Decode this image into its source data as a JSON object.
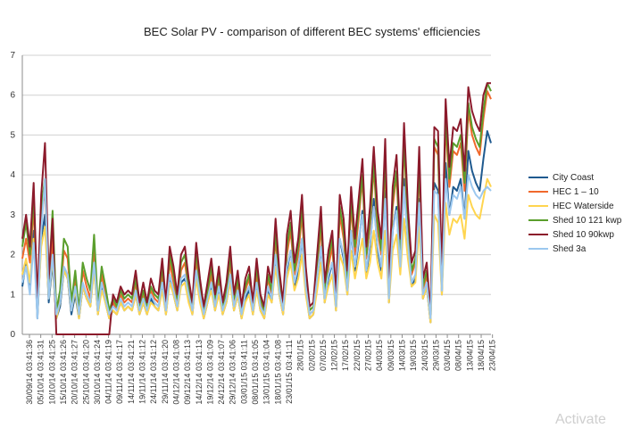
{
  "chart_data": {
    "type": "line",
    "title": "BEC Solar PV - comparison of different BEC systems' efficiencies",
    "xlabel": "",
    "ylabel": "",
    "ylim": [
      0,
      7
    ],
    "yticks": [
      "0",
      "1",
      "2",
      "3",
      "4",
      "5",
      "6",
      "7"
    ],
    "x_tick_labels": [
      "30/09/14 03:41:36",
      "05/10/14 03:41:31",
      "10/10/14 03:41:25",
      "15/10/14 03:41:26",
      "20/10/14 03:41:27",
      "25/10/14 03:41:20",
      "30/10/14 03:41:24",
      "04/11/14 03:41:19",
      "09/11/14 03:41:17",
      "14/11/14 03:41:21",
      "19/11/14 03:41:12",
      "24/11/14 03:41:12",
      "29/11/14 03:41:20",
      "04/12/14 03:41:08",
      "09/12/14 03:41:13",
      "14/12/14 03:41:13",
      "19/12/14 03:41:09",
      "24/12/14 03:41:07",
      "29/12/14 03:41:06",
      "03/01/15 03:41:11",
      "08/01/15 03:41:05",
      "13/01/15 03:41:04",
      "18/01/15 03:41:08",
      "23/01/15 03:41:11",
      "28/01/15",
      "02/02/15",
      "07/02/15",
      "12/02/15",
      "17/02/15",
      "22/02/15",
      "27/02/15",
      "04/03/15",
      "09/03/15",
      "14/03/15",
      "19/03/15",
      "24/03/15",
      "29/03/15",
      "03/04/15",
      "08/04/15",
      "13/04/15",
      "18/04/15",
      "23/04/15"
    ],
    "legend_position": "right",
    "grid": "horizontal",
    "series": [
      {
        "name": "City Coast",
        "color": "#1f5a8f",
        "values": [
          1.2,
          1.8,
          1.1,
          2.6,
          0.4,
          2.4,
          3.0,
          0.8,
          1.8,
          0.4,
          0.7,
          1.6,
          1.4,
          0.5,
          1.0,
          0.4,
          1.2,
          0.9,
          0.7,
          1.7,
          0.5,
          1.2,
          0.8,
          0.4,
          0.6,
          0.5,
          0.8,
          0.6,
          0.7,
          0.6,
          1.0,
          0.5,
          0.8,
          0.5,
          0.9,
          0.7,
          0.6,
          1.2,
          0.5,
          1.4,
          1.0,
          0.6,
          1.3,
          1.4,
          0.9,
          0.5,
          1.5,
          0.9,
          0.4,
          0.8,
          1.2,
          0.6,
          1.1,
          0.5,
          0.8,
          1.4,
          0.6,
          1.0,
          0.4,
          0.9,
          1.1,
          0.5,
          1.2,
          0.6,
          0.4,
          1.1,
          0.8,
          1.9,
          1.0,
          0.5,
          1.6,
          2.1,
          1.2,
          1.6,
          2.4,
          1.1,
          0.4,
          0.5,
          1.3,
          2.2,
          0.8,
          1.4,
          1.8,
          0.6,
          2.4,
          1.9,
          1.0,
          2.6,
          1.6,
          2.3,
          3.1,
          1.5,
          2.2,
          3.4,
          2.1,
          1.6,
          3.6,
          0.8,
          2.6,
          3.2,
          1.6,
          3.9,
          2.2,
          1.2,
          1.4,
          3.4,
          0.9,
          1.2,
          0.3,
          3.8,
          3.6,
          1.0,
          4.3,
          3.0,
          3.7,
          3.6,
          3.9,
          2.9,
          4.6,
          4.1,
          3.8,
          3.6,
          4.4,
          5.1,
          4.8
        ]
      },
      {
        "name": "HEC 1 – 10",
        "color": "#f0682c",
        "values": [
          1.9,
          2.4,
          1.8,
          3.2,
          0.6,
          3.0,
          3.6,
          1.1,
          2.4,
          0.5,
          0.9,
          2.1,
          1.9,
          0.7,
          1.4,
          0.5,
          1.6,
          1.2,
          0.9,
          2.2,
          0.6,
          1.5,
          1.0,
          0.5,
          0.8,
          0.6,
          1.0,
          0.8,
          0.9,
          0.8,
          1.3,
          0.6,
          1.0,
          0.6,
          1.1,
          0.9,
          0.8,
          1.5,
          0.6,
          1.8,
          1.3,
          0.8,
          1.6,
          1.8,
          1.1,
          0.6,
          1.9,
          1.1,
          0.5,
          1.0,
          1.5,
          0.8,
          1.4,
          0.6,
          1.0,
          1.8,
          0.8,
          1.3,
          0.5,
          1.1,
          1.4,
          0.6,
          1.5,
          0.8,
          0.5,
          1.4,
          1.0,
          2.4,
          1.3,
          0.6,
          2.0,
          2.6,
          1.5,
          2.0,
          3.0,
          1.4,
          0.5,
          0.6,
          1.6,
          2.7,
          1.0,
          1.7,
          2.2,
          0.8,
          3.0,
          2.4,
          1.3,
          3.2,
          2.0,
          2.9,
          3.9,
          1.9,
          2.7,
          4.2,
          2.6,
          2.0,
          4.3,
          1.0,
          3.2,
          4.0,
          2.0,
          4.8,
          2.7,
          1.5,
          1.8,
          4.2,
          1.1,
          1.5,
          0.4,
          4.7,
          4.5,
          1.3,
          5.3,
          3.7,
          4.6,
          4.5,
          4.8,
          3.6,
          5.6,
          5.0,
          4.7,
          4.5,
          5.4,
          6.1,
          5.9
        ]
      },
      {
        "name": "HEC Waterside",
        "color": "#ffd54f",
        "values": [
          1.5,
          1.9,
          1.3,
          2.4,
          0.5,
          2.2,
          2.7,
          0.9,
          1.9,
          0.4,
          0.8,
          1.6,
          1.4,
          0.6,
          1.1,
          0.4,
          1.2,
          0.9,
          0.7,
          1.6,
          0.5,
          1.1,
          0.8,
          0.4,
          0.6,
          0.5,
          0.8,
          0.6,
          0.7,
          0.6,
          1.0,
          0.5,
          0.8,
          0.5,
          0.8,
          0.7,
          0.6,
          1.1,
          0.5,
          1.3,
          1.0,
          0.6,
          1.2,
          1.3,
          0.8,
          0.5,
          1.4,
          0.8,
          0.4,
          0.8,
          1.1,
          0.6,
          1.0,
          0.5,
          0.8,
          1.3,
          0.6,
          1.0,
          0.4,
          0.8,
          1.0,
          0.5,
          1.1,
          0.6,
          0.4,
          1.0,
          0.8,
          1.7,
          1.0,
          0.5,
          1.4,
          1.8,
          1.1,
          1.4,
          2.0,
          1.0,
          0.4,
          0.5,
          1.1,
          1.8,
          0.8,
          1.2,
          1.5,
          0.6,
          2.0,
          1.7,
          1.0,
          2.1,
          1.4,
          1.9,
          2.4,
          1.4,
          1.8,
          2.6,
          1.8,
          1.4,
          2.6,
          0.8,
          2.1,
          2.5,
          1.5,
          2.9,
          1.9,
          1.2,
          1.3,
          2.7,
          0.9,
          1.2,
          0.3,
          3.0,
          2.8,
          1.0,
          3.3,
          2.5,
          2.9,
          2.8,
          3.0,
          2.4,
          3.5,
          3.2,
          3.0,
          2.9,
          3.4,
          3.9,
          3.7
        ]
      },
      {
        "name": "Shed 10 121 kwp",
        "color": "#5a9e2c",
        "values": [
          2.2,
          2.8,
          2.0,
          3.5,
          0.7,
          3.2,
          3.9,
          1.3,
          3.1,
          0.6,
          1.1,
          2.4,
          2.2,
          0.8,
          1.6,
          0.6,
          1.8,
          1.4,
          1.1,
          2.5,
          0.7,
          1.7,
          1.2,
          0.6,
          0.9,
          0.7,
          1.1,
          0.9,
          1.0,
          0.9,
          1.4,
          0.7,
          1.1,
          0.7,
          1.2,
          1.0,
          0.9,
          1.7,
          0.7,
          2.0,
          1.5,
          0.9,
          1.8,
          2.0,
          1.2,
          0.7,
          2.1,
          1.2,
          0.6,
          1.1,
          1.7,
          0.9,
          1.5,
          0.7,
          1.1,
          2.0,
          0.9,
          1.4,
          0.6,
          1.2,
          1.5,
          0.7,
          1.7,
          0.9,
          0.6,
          1.5,
          1.1,
          2.6,
          1.4,
          0.7,
          2.2,
          2.8,
          1.6,
          2.2,
          3.2,
          1.5,
          0.6,
          0.7,
          1.8,
          2.9,
          1.1,
          1.9,
          2.4,
          0.9,
          3.2,
          2.6,
          1.4,
          3.4,
          2.2,
          3.1,
          4.0,
          2.0,
          2.9,
          4.3,
          2.8,
          2.1,
          4.5,
          1.1,
          3.4,
          4.1,
          2.1,
          4.9,
          2.9,
          1.6,
          1.9,
          4.3,
          1.2,
          1.6,
          0.5,
          4.9,
          4.7,
          1.4,
          5.5,
          3.9,
          4.8,
          4.7,
          5.0,
          3.8,
          5.8,
          5.2,
          4.9,
          4.7,
          5.6,
          6.3,
          6.1
        ]
      },
      {
        "name": "Shed 10 90kwp",
        "color": "#8b1a2b",
        "values": [
          2.4,
          3.0,
          2.2,
          3.8,
          0.8,
          3.5,
          4.8,
          1.4,
          2.9,
          0.0,
          0.0,
          0.0,
          0.0,
          0.0,
          0.0,
          0.0,
          0.0,
          0.0,
          0.0,
          0.0,
          0.0,
          0.0,
          0.0,
          0.0,
          1.0,
          0.8,
          1.2,
          1.0,
          1.1,
          1.0,
          1.6,
          0.8,
          1.3,
          0.8,
          1.4,
          1.1,
          1.0,
          1.9,
          0.8,
          2.2,
          1.7,
          1.0,
          2.0,
          2.2,
          1.4,
          0.8,
          2.3,
          1.4,
          0.7,
          1.3,
          1.9,
          1.0,
          1.7,
          0.8,
          1.3,
          2.2,
          1.0,
          1.6,
          0.7,
          1.4,
          1.7,
          0.8,
          1.9,
          1.0,
          0.7,
          1.7,
          1.3,
          2.9,
          1.6,
          0.8,
          2.5,
          3.1,
          1.8,
          2.4,
          3.5,
          1.7,
          0.7,
          0.8,
          2.0,
          3.2,
          1.3,
          2.1,
          2.6,
          1.0,
          3.5,
          2.9,
          1.6,
          3.7,
          2.4,
          3.4,
          4.4,
          2.2,
          3.2,
          4.7,
          3.1,
          2.4,
          4.9,
          1.3,
          3.7,
          4.5,
          2.4,
          5.3,
          3.2,
          1.8,
          2.1,
          4.7,
          1.4,
          1.8,
          0.5,
          5.2,
          5.1,
          1.6,
          5.9,
          4.2,
          5.2,
          5.1,
          5.4,
          4.1,
          6.2,
          5.6,
          5.3,
          5.1,
          6.0,
          6.3,
          6.3
        ]
      },
      {
        "name": "Shed 3a",
        "color": "#9cc8ef",
        "values": [
          1.3,
          1.7,
          1.0,
          2.3,
          0.4,
          2.6,
          3.9,
          0.9,
          2.0,
          0.5,
          0.8,
          1.7,
          1.5,
          0.6,
          1.2,
          0.5,
          1.3,
          1.0,
          0.8,
          1.8,
          0.6,
          1.3,
          0.9,
          0.5,
          0.7,
          0.6,
          0.9,
          0.7,
          0.8,
          0.7,
          1.1,
          0.6,
          0.9,
          0.6,
          1.0,
          0.8,
          0.7,
          1.3,
          0.6,
          1.5,
          1.1,
          0.7,
          1.4,
          1.5,
          1.0,
          0.6,
          1.6,
          1.0,
          0.5,
          0.9,
          1.3,
          0.7,
          1.2,
          0.6,
          0.9,
          1.5,
          0.7,
          1.1,
          0.5,
          1.0,
          1.2,
          0.6,
          1.3,
          0.7,
          0.5,
          1.2,
          0.9,
          2.0,
          1.1,
          0.6,
          1.7,
          2.1,
          1.3,
          1.7,
          2.4,
          1.2,
          0.5,
          0.6,
          1.4,
          2.2,
          0.9,
          1.5,
          1.8,
          0.7,
          2.4,
          2.0,
          1.1,
          2.6,
          1.7,
          2.4,
          3.0,
          1.6,
          2.3,
          3.2,
          2.2,
          1.7,
          3.4,
          0.9,
          2.6,
          3.1,
          1.7,
          3.7,
          2.3,
          1.3,
          1.5,
          3.3,
          1.0,
          1.3,
          0.4,
          3.6,
          3.5,
          1.1,
          3.9,
          3.0,
          3.5,
          3.4,
          3.7,
          2.9,
          4.0,
          3.7,
          3.5,
          3.4,
          3.6,
          3.7,
          3.6
        ]
      }
    ]
  },
  "watermark_text": "Activate"
}
